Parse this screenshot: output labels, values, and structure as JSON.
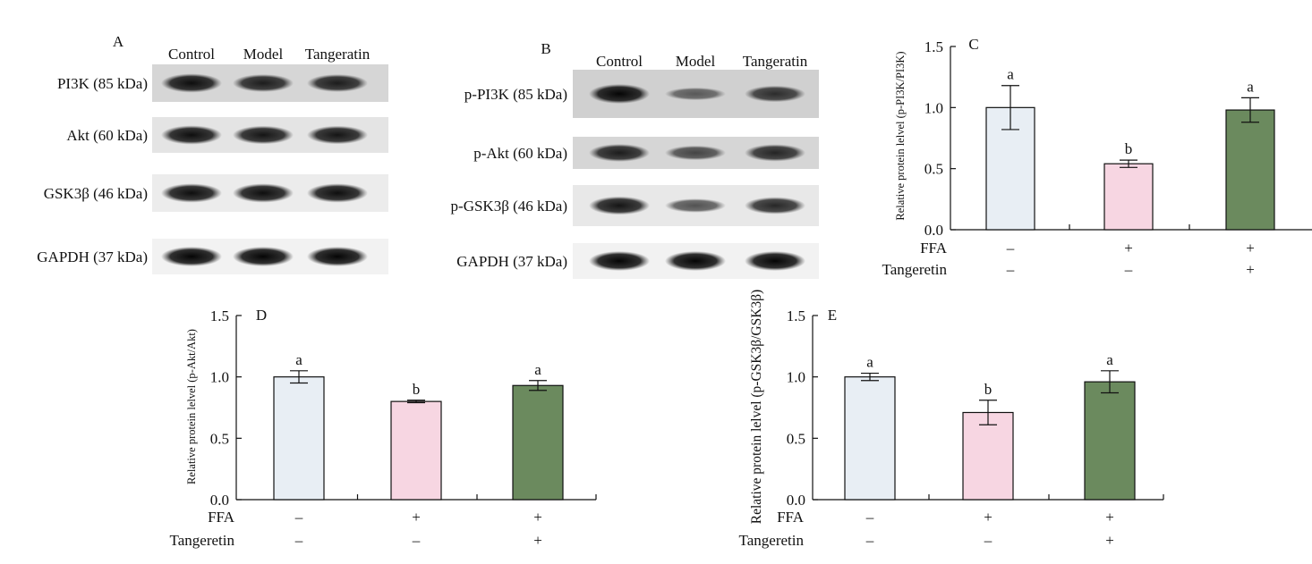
{
  "panels": {
    "A": {
      "letter": "A",
      "lanes": [
        "Control",
        "Model",
        "Tangeratin"
      ],
      "blots": [
        {
          "label": "PI3K (85 kDa)",
          "bg": "#d6d6d6",
          "intensity": [
            0.95,
            0.85,
            0.85
          ]
        },
        {
          "label": "Akt (60 kDa)",
          "bg": "#e4e4e4",
          "intensity": [
            0.95,
            0.9,
            0.9
          ]
        },
        {
          "label": "GSK3β (46 kDa)",
          "bg": "#ececec",
          "intensity": [
            0.95,
            0.95,
            0.95
          ]
        },
        {
          "label": "GAPDH (37 kDa)",
          "bg": "#f2f2f2",
          "intensity": [
            1.0,
            1.0,
            1.0
          ]
        }
      ]
    },
    "B": {
      "letter": "B",
      "lanes": [
        "Control",
        "Model",
        "Tangeratin"
      ],
      "blots": [
        {
          "label": "p-PI3K (85 kDa)",
          "bg": "#d0d0d0",
          "intensity": [
            1.0,
            0.45,
            0.75
          ]
        },
        {
          "label": "p-Akt (60 kDa)",
          "bg": "#d6d6d6",
          "intensity": [
            0.85,
            0.6,
            0.8
          ]
        },
        {
          "label": "p-GSK3β (46 kDa)",
          "bg": "#e8e8e8",
          "intensity": [
            0.9,
            0.55,
            0.8
          ]
        },
        {
          "label": "GAPDH (37 kDa)",
          "bg": "#f2f2f2",
          "intensity": [
            1.0,
            1.0,
            1.0
          ]
        }
      ]
    }
  },
  "treatment_rows": {
    "ffa_label": "FFA",
    "tangeretin_label": "Tangeretin",
    "ffa_signs": [
      "–",
      "+",
      "+"
    ],
    "tangeretin_signs": [
      "–",
      "–",
      "+"
    ]
  },
  "colors": {
    "control": "#e8eef4",
    "model": "#f7d6e2",
    "tangeretin": "#6b8a5e"
  },
  "chart_data": [
    {
      "panel": "C",
      "type": "bar",
      "ylabel": "Relative protein lelvel (p-PI3K/PI3K)",
      "ylim": [
        0,
        1.5
      ],
      "yticks": [
        "0.0",
        "0.5",
        "1.0",
        "1.5"
      ],
      "values": [
        1.0,
        0.54,
        0.98
      ],
      "errors": [
        0.18,
        0.03,
        0.1
      ],
      "sig_letters": [
        "a",
        "b",
        "a"
      ]
    },
    {
      "panel": "D",
      "type": "bar",
      "ylabel": "Relative protein lelvel (p-Akt/Akt)",
      "ylim": [
        0,
        1.5
      ],
      "yticks": [
        "0.0",
        "0.5",
        "1.0",
        "1.5"
      ],
      "values": [
        1.0,
        0.8,
        0.93
      ],
      "errors": [
        0.05,
        0.01,
        0.04
      ],
      "sig_letters": [
        "a",
        "b",
        "a"
      ]
    },
    {
      "panel": "E",
      "type": "bar",
      "ylabel": "Relative protein lelvel (p-GSK3β/GSK3β)",
      "ylim": [
        0,
        1.5
      ],
      "yticks": [
        "0.0",
        "0.5",
        "1.0",
        "1.5"
      ],
      "values": [
        1.0,
        0.71,
        0.96
      ],
      "errors": [
        0.03,
        0.1,
        0.09
      ],
      "sig_letters": [
        "a",
        "b",
        "a"
      ]
    }
  ]
}
